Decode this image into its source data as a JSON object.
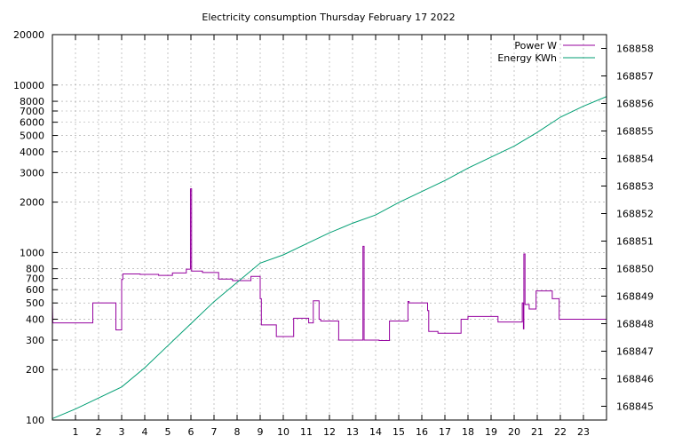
{
  "chart_data": {
    "type": "line",
    "title": "Electricity consumption Thursday February 17 2022",
    "xlabel": "",
    "ylabel": "",
    "y2label": "",
    "grid": true,
    "legend_position": "top-right",
    "x_range": [
      0,
      24
    ],
    "x_ticks": [
      "1",
      "2",
      "3",
      "4",
      "5",
      "6",
      "7",
      "8",
      "9",
      "10",
      "11",
      "12",
      "13",
      "14",
      "15",
      "16",
      "17",
      "18",
      "19",
      "20",
      "21",
      "22",
      "23"
    ],
    "y_scale": "log",
    "y_range": [
      100,
      20000
    ],
    "y_ticks": [
      "100",
      "200",
      "300",
      "400",
      "500",
      "600",
      "700",
      "800",
      "1000",
      "2000",
      "3000",
      "4000",
      "5000",
      "6000",
      "7000",
      "8000",
      "10000",
      "20000"
    ],
    "y2_range": [
      168844.5,
      168858.5
    ],
    "y2_ticks": [
      "168845",
      "168846",
      "168847",
      "168848",
      "168849",
      "168850",
      "168851",
      "168852",
      "168853",
      "168854",
      "168855",
      "168856",
      "168857",
      "168858"
    ],
    "series": [
      {
        "name": "Power W",
        "color": "#94009e",
        "axis": "y",
        "points": [
          [
            0,
            500
          ],
          [
            0.02,
            380
          ],
          [
            1.75,
            380
          ],
          [
            1.75,
            500
          ],
          [
            2.75,
            500
          ],
          [
            2.75,
            345
          ],
          [
            3.0,
            345
          ],
          [
            3.0,
            690
          ],
          [
            3.05,
            690
          ],
          [
            3.05,
            745
          ],
          [
            3.8,
            745
          ],
          [
            3.8,
            740
          ],
          [
            4.6,
            740
          ],
          [
            4.6,
            730
          ],
          [
            5.2,
            730
          ],
          [
            5.2,
            755
          ],
          [
            5.8,
            755
          ],
          [
            5.8,
            795
          ],
          [
            5.98,
            795
          ],
          [
            5.98,
            2400
          ],
          [
            6.03,
            2400
          ],
          [
            6.03,
            775
          ],
          [
            6.5,
            775
          ],
          [
            6.5,
            760
          ],
          [
            7.2,
            760
          ],
          [
            7.2,
            695
          ],
          [
            7.8,
            695
          ],
          [
            7.8,
            680
          ],
          [
            8.6,
            680
          ],
          [
            8.6,
            720
          ],
          [
            9.0,
            720
          ],
          [
            9.0,
            530
          ],
          [
            9.05,
            530
          ],
          [
            9.05,
            370
          ],
          [
            9.7,
            370
          ],
          [
            9.7,
            315
          ],
          [
            10.45,
            315
          ],
          [
            10.45,
            405
          ],
          [
            11.1,
            405
          ],
          [
            11.1,
            380
          ],
          [
            11.3,
            380
          ],
          [
            11.3,
            515
          ],
          [
            11.55,
            515
          ],
          [
            11.55,
            400
          ],
          [
            11.62,
            400
          ],
          [
            11.62,
            390
          ],
          [
            12.4,
            390
          ],
          [
            12.4,
            300
          ],
          [
            13.45,
            300
          ],
          [
            13.45,
            1090
          ],
          [
            13.5,
            1090
          ],
          [
            13.5,
            300
          ],
          [
            14.15,
            300
          ],
          [
            14.15,
            298
          ],
          [
            14.6,
            298
          ],
          [
            14.6,
            390
          ],
          [
            15.4,
            390
          ],
          [
            15.4,
            510
          ],
          [
            15.45,
            510
          ],
          [
            15.45,
            500
          ],
          [
            16.25,
            500
          ],
          [
            16.25,
            450
          ],
          [
            16.3,
            450
          ],
          [
            16.3,
            338
          ],
          [
            16.7,
            338
          ],
          [
            16.7,
            330
          ],
          [
            17.7,
            330
          ],
          [
            17.7,
            400
          ],
          [
            18.0,
            400
          ],
          [
            18.0,
            415
          ],
          [
            19.3,
            415
          ],
          [
            19.3,
            385
          ],
          [
            20.35,
            385
          ],
          [
            20.35,
            500
          ],
          [
            20.4,
            500
          ],
          [
            20.4,
            350
          ],
          [
            20.42,
            350
          ],
          [
            20.42,
            980
          ],
          [
            20.47,
            980
          ],
          [
            20.47,
            490
          ],
          [
            20.65,
            490
          ],
          [
            20.65,
            460
          ],
          [
            20.95,
            460
          ],
          [
            20.95,
            590
          ],
          [
            21.65,
            590
          ],
          [
            21.65,
            530
          ],
          [
            21.95,
            530
          ],
          [
            21.95,
            400
          ],
          [
            24.0,
            400
          ]
        ]
      },
      {
        "name": "Energy KWh",
        "color": "#009e73",
        "axis": "y2",
        "points": [
          [
            0,
            168844.55
          ],
          [
            1.0,
            168844.9
          ],
          [
            2.0,
            168845.3
          ],
          [
            3.0,
            168845.7
          ],
          [
            4.0,
            168846.4
          ],
          [
            5.0,
            168847.2
          ],
          [
            6.0,
            168848.0
          ],
          [
            7.0,
            168848.8
          ],
          [
            8.0,
            168849.5
          ],
          [
            9.0,
            168850.2
          ],
          [
            10.0,
            168850.5
          ],
          [
            11.0,
            168850.9
          ],
          [
            12.0,
            168851.3
          ],
          [
            13.0,
            168851.65
          ],
          [
            14.0,
            168851.95
          ],
          [
            15.0,
            168852.4
          ],
          [
            16.0,
            168852.8
          ],
          [
            17.0,
            168853.2
          ],
          [
            18.0,
            168853.65
          ],
          [
            19.0,
            168854.05
          ],
          [
            20.0,
            168854.45
          ],
          [
            21.0,
            168854.95
          ],
          [
            22.0,
            168855.5
          ],
          [
            23.0,
            168855.9
          ],
          [
            24.0,
            168856.25
          ]
        ]
      }
    ]
  }
}
